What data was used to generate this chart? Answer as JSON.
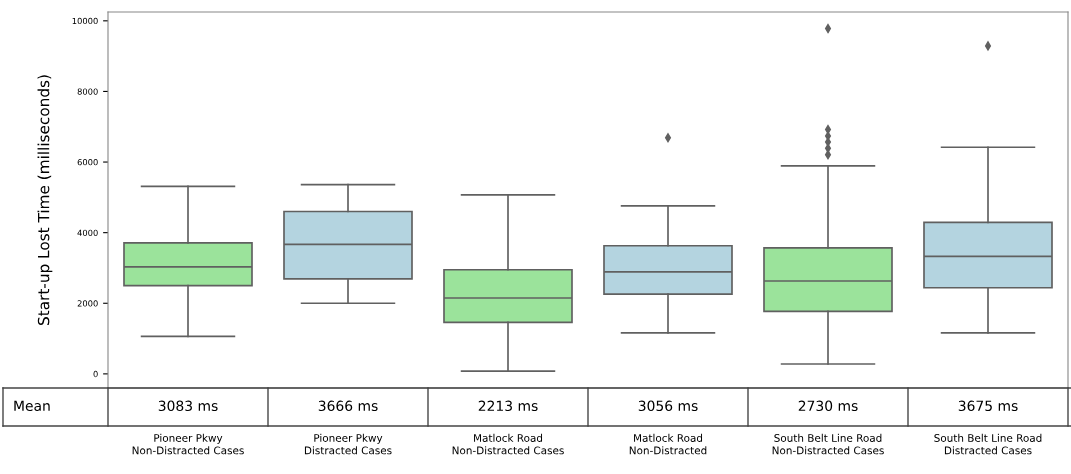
{
  "chart_data": {
    "type": "box",
    "ylabel": "Start-up Lost Time (milliseconds)",
    "categories": [
      "Pioneer Pkwy\nNon-Distracted Cases",
      "Pioneer Pkwy\nDistracted Cases",
      "Matlock Road\nNon-Distracted Cases",
      "Matlock Road\nNon-Distracted",
      "South Belt Line Road\nNon-Distracted Cases",
      "South Belt Line Road\nDistracted Cases"
    ],
    "colors": [
      "#9be39b",
      "#b4d4e0",
      "#9be39b",
      "#b4d4e0",
      "#9be39b",
      "#b4d4e0"
    ],
    "boxes": [
      {
        "low": 1060,
        "q1": 2500,
        "median": 3030,
        "q3": 3710,
        "high": 5310
      },
      {
        "low": 2000,
        "q1": 2690,
        "median": 3670,
        "q3": 4600,
        "high": 5360
      },
      {
        "low": 80,
        "q1": 1460,
        "median": 2150,
        "q3": 2950,
        "high": 5070
      },
      {
        "low": 1160,
        "q1": 2260,
        "median": 2890,
        "q3": 3630,
        "high": 4760,
        "outliers": [
          6690
        ]
      },
      {
        "low": 280,
        "q1": 1770,
        "median": 2630,
        "q3": 3570,
        "high": 5890,
        "outliers": [
          6210,
          6390,
          6570,
          6740,
          6920,
          9780
        ]
      },
      {
        "low": 1160,
        "q1": 2440,
        "median": 3330,
        "q3": 4290,
        "high": 6420,
        "outliers": [
          9290
        ]
      }
    ],
    "ylim": [
      -400,
      10250
    ],
    "yticks": [
      0,
      2000,
      4000,
      6000,
      8000,
      10000
    ],
    "grid": false,
    "annotations": [
      "Mean",
      "3083 ms",
      "3666 ms",
      "2213 ms",
      "3056 ms",
      "2730 ms",
      "3675 ms"
    ]
  }
}
